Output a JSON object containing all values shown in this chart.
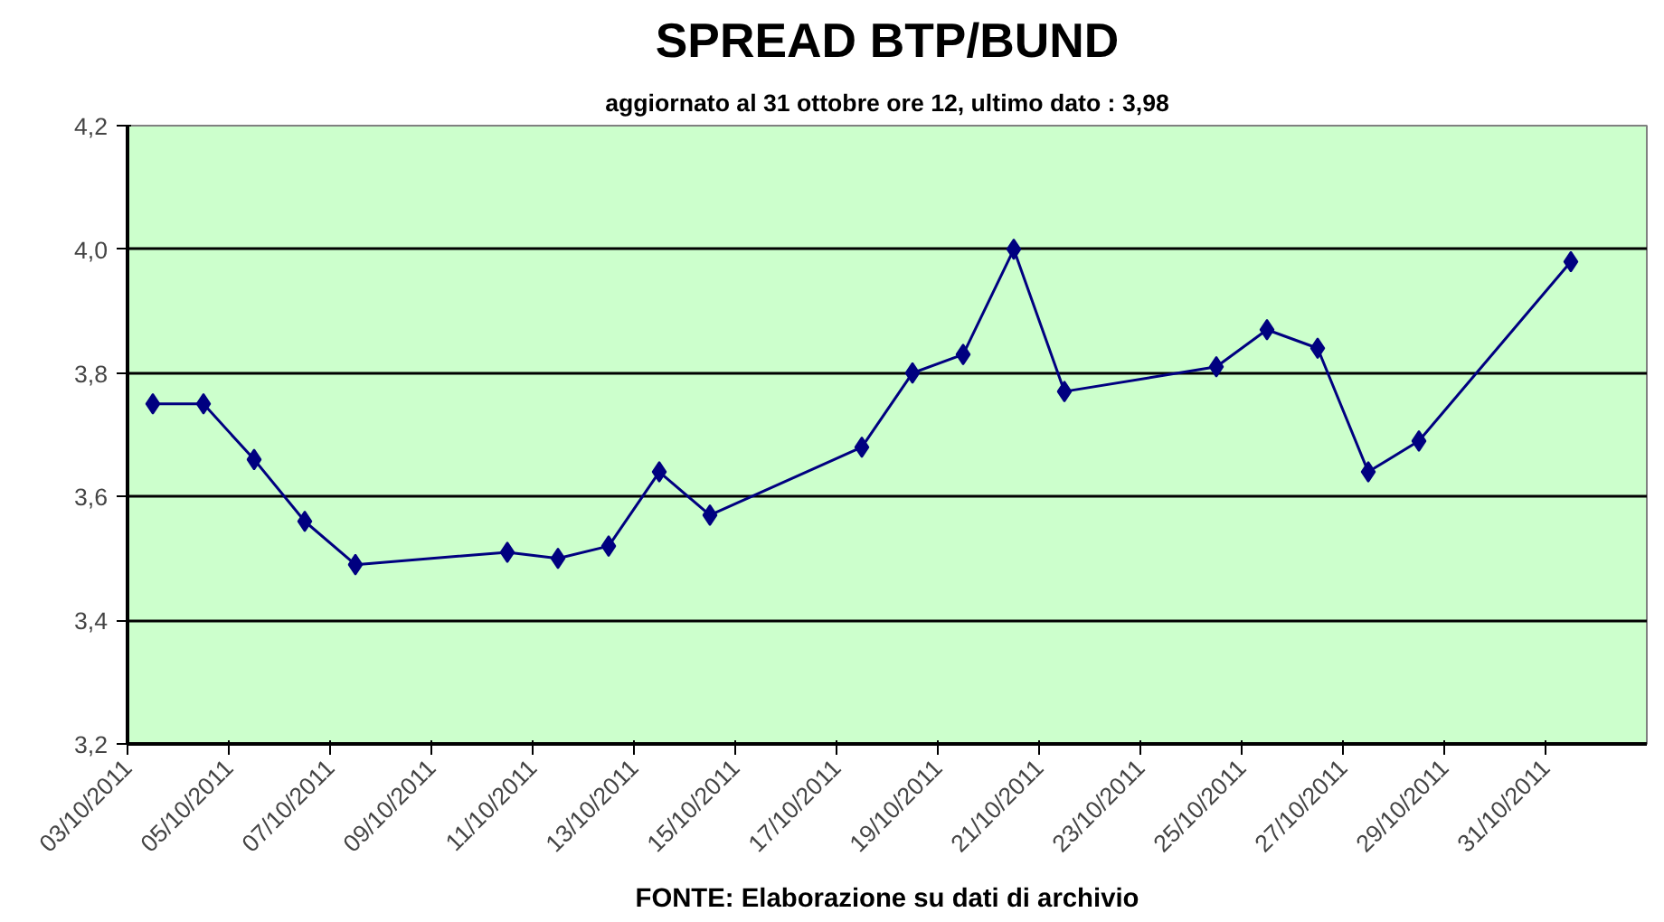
{
  "chart_data": {
    "type": "line",
    "title": "SPREAD BTP/BUND",
    "subtitle": "aggiornato al 31 ottobre ore 12, ultimo dato : 3,98",
    "annotations": [
      "FONTE: Elaborazione su dati di archivio"
    ],
    "x": [
      "2011-10-03T12:00",
      "2011-10-04T12:00",
      "2011-10-05T12:00",
      "2011-10-06T12:00",
      "2011-10-07T12:00",
      "2011-10-10T12:00",
      "2011-10-11T12:00",
      "2011-10-12T12:00",
      "2011-10-13T12:00",
      "2011-10-14T12:00",
      "2011-10-17T12:00",
      "2011-10-18T12:00",
      "2011-10-19T12:00",
      "2011-10-20T12:00",
      "2011-10-21T12:00",
      "2011-10-24T12:00",
      "2011-10-25T12:00",
      "2011-10-26T12:00",
      "2011-10-27T12:00",
      "2011-10-28T12:00",
      "2011-10-31T12:00"
    ],
    "series": [
      {
        "color": "#000080",
        "values": [
          3.75,
          3.75,
          3.66,
          3.56,
          3.49,
          3.51,
          3.5,
          3.52,
          3.64,
          3.57,
          3.68,
          3.8,
          3.83,
          4.0,
          3.77,
          3.81,
          3.87,
          3.84,
          3.64,
          3.69,
          3.98
        ]
      }
    ],
    "xlim": [
      "2011-10-03",
      "2011-11-02"
    ],
    "xticks": [
      {
        "value": "2011-10-03",
        "label": "03/10/2011"
      },
      {
        "value": "2011-10-05",
        "label": "05/10/2011"
      },
      {
        "value": "2011-10-07",
        "label": "07/10/2011"
      },
      {
        "value": "2011-10-09",
        "label": "09/10/2011"
      },
      {
        "value": "2011-10-11",
        "label": "11/10/2011"
      },
      {
        "value": "2011-10-13",
        "label": "13/10/2011"
      },
      {
        "value": "2011-10-15",
        "label": "15/10/2011"
      },
      {
        "value": "2011-10-17",
        "label": "17/10/2011"
      },
      {
        "value": "2011-10-19",
        "label": "19/10/2011"
      },
      {
        "value": "2011-10-21",
        "label": "21/10/2011"
      },
      {
        "value": "2011-10-23",
        "label": "23/10/2011"
      },
      {
        "value": "2011-10-25",
        "label": "25/10/2011"
      },
      {
        "value": "2011-10-27",
        "label": "27/10/2011"
      },
      {
        "value": "2011-10-29",
        "label": "29/10/2011"
      },
      {
        "value": "2011-10-31",
        "label": "31/10/2011"
      }
    ],
    "ylim": [
      3.2,
      4.2
    ],
    "yticks": [
      {
        "value": 3.2,
        "label": "3,2"
      },
      {
        "value": 3.4,
        "label": "3,4"
      },
      {
        "value": 3.6,
        "label": "3,6"
      },
      {
        "value": 3.8,
        "label": "3,8"
      },
      {
        "value": 4.0,
        "label": "4,0"
      },
      {
        "value": 4.2,
        "label": "4,2"
      }
    ],
    "grid": "y",
    "marker": "diamond",
    "line_style": "solid"
  }
}
